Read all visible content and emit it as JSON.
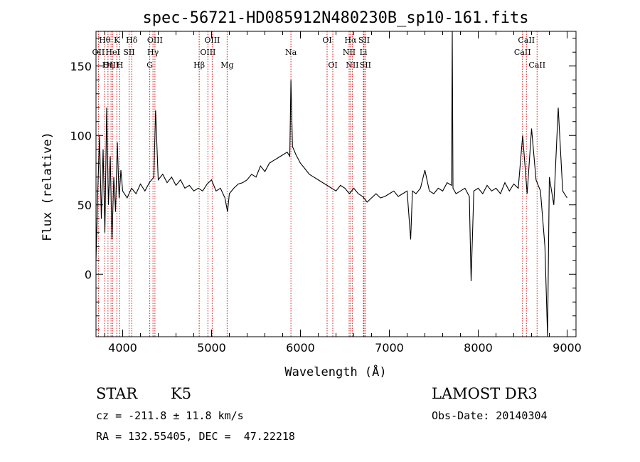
{
  "title": "spec-56721-HD085912N480230B_sp10-161.fits",
  "chart_data": {
    "type": "line",
    "title": "spec-56721-HD085912N480230B_sp10-161.fits",
    "xlabel": "Wavelength (Å)",
    "ylabel": "Flux (relative)",
    "xlim": [
      3700,
      9100
    ],
    "ylim": [
      -45,
      175
    ],
    "xticks": [
      4000,
      5000,
      6000,
      7000,
      8000,
      9000
    ],
    "yticks": [
      0,
      50,
      100,
      150
    ],
    "grid": false,
    "spectral_lines": [
      {
        "label": "Hθ",
        "wavelength": 3798,
        "row": 0
      },
      {
        "label": "OII",
        "wavelength": 3727,
        "row": 1
      },
      {
        "label": "OIII",
        "wavelength": 3869,
        "row": 2
      },
      {
        "label": "Hη",
        "wavelength": 3835,
        "row": 2
      },
      {
        "label": "HeI",
        "wavelength": 3889,
        "row": 1
      },
      {
        "label": "K",
        "wavelength": 3934,
        "row": 0
      },
      {
        "label": "H",
        "wavelength": 3968,
        "row": 2
      },
      {
        "label": "SII",
        "wavelength": 4072,
        "row": 1
      },
      {
        "label": "Hδ",
        "wavelength": 4102,
        "row": 0
      },
      {
        "label": "OIII",
        "wavelength": 4363,
        "row": 0
      },
      {
        "label": "Hγ",
        "wavelength": 4341,
        "row": 1
      },
      {
        "label": "G",
        "wavelength": 4305,
        "row": 2
      },
      {
        "label": "Hβ",
        "wavelength": 4861,
        "row": 2
      },
      {
        "label": "OIII",
        "wavelength": 4959,
        "row": 1
      },
      {
        "label": "OIII",
        "wavelength": 5007,
        "row": 0
      },
      {
        "label": "Mg",
        "wavelength": 5175,
        "row": 2
      },
      {
        "label": "Na",
        "wavelength": 5893,
        "row": 1
      },
      {
        "label": "OI",
        "wavelength": 6300,
        "row": 0
      },
      {
        "label": "OI",
        "wavelength": 6364,
        "row": 2
      },
      {
        "label": "NII",
        "wavelength": 6548,
        "row": 1
      },
      {
        "label": "Hα",
        "wavelength": 6563,
        "row": 0
      },
      {
        "label": "NII",
        "wavelength": 6583,
        "row": 2
      },
      {
        "label": "SII",
        "wavelength": 6716,
        "row": 0
      },
      {
        "label": "Li",
        "wavelength": 6708,
        "row": 1
      },
      {
        "label": "SII",
        "wavelength": 6731,
        "row": 2
      },
      {
        "label": "CaII",
        "wavelength": 8498,
        "row": 1
      },
      {
        "label": "CaII",
        "wavelength": 8542,
        "row": 0
      },
      {
        "label": "CaII",
        "wavelength": 8662,
        "row": 2
      }
    ],
    "series": [
      {
        "x": [
          3700,
          3720,
          3740,
          3760,
          3780,
          3800,
          3820,
          3840,
          3860,
          3880,
          3900,
          3920,
          3940,
          3960,
          3980,
          4000,
          4050,
          4100,
          4150,
          4200,
          4250,
          4300,
          4350,
          4370,
          4400,
          4450,
          4500,
          4550,
          4600,
          4650,
          4700,
          4750,
          4800,
          4850,
          4900,
          4950,
          5000,
          5050,
          5100,
          5150,
          5180,
          5200,
          5250,
          5300,
          5350,
          5400,
          5450,
          5500,
          5550,
          5600,
          5650,
          5700,
          5750,
          5800,
          5850,
          5880,
          5893,
          5910,
          5950,
          6000,
          6050,
          6100,
          6150,
          6200,
          6250,
          6300,
          6350,
          6400,
          6450,
          6500,
          6550,
          6600,
          6650,
          6700,
          6750,
          6800,
          6850,
          6900,
          6950,
          7000,
          7050,
          7100,
          7150,
          7200,
          7240,
          7260,
          7300,
          7350,
          7400,
          7450,
          7500,
          7550,
          7600,
          7650,
          7700,
          7708,
          7716,
          7750,
          7800,
          7850,
          7900,
          7920,
          7950,
          8000,
          8050,
          8100,
          8150,
          8200,
          8250,
          8300,
          8350,
          8400,
          8450,
          8500,
          8550,
          8600,
          8650,
          8700,
          8750,
          8780,
          8800,
          8850,
          8900,
          8950,
          9000
        ],
        "y": [
          10,
          60,
          100,
          40,
          90,
          30,
          120,
          50,
          85,
          25,
          70,
          45,
          95,
          55,
          75,
          60,
          55,
          62,
          58,
          65,
          60,
          66,
          70,
          118,
          68,
          72,
          66,
          70,
          64,
          68,
          62,
          64,
          60,
          62,
          60,
          65,
          68,
          60,
          62,
          55,
          45,
          58,
          62,
          65,
          66,
          68,
          72,
          70,
          78,
          74,
          80,
          82,
          84,
          86,
          88,
          85,
          140,
          92,
          86,
          80,
          76,
          72,
          70,
          68,
          66,
          64,
          62,
          60,
          64,
          62,
          58,
          62,
          58,
          56,
          52,
          55,
          58,
          55,
          56,
          58,
          60,
          56,
          58,
          60,
          25,
          60,
          58,
          62,
          75,
          60,
          58,
          62,
          60,
          66,
          64,
          175,
          62,
          58,
          60,
          62,
          56,
          -5,
          60,
          62,
          58,
          64,
          60,
          62,
          58,
          66,
          60,
          65,
          62,
          100,
          58,
          105,
          68,
          60,
          20,
          -45,
          70,
          50,
          120,
          60,
          55
        ]
      }
    ]
  },
  "info": {
    "object_class": "STAR",
    "subclass": "K5",
    "survey": "LAMOST DR3",
    "cz": "cz = -211.8 ± 11.8 km/s",
    "obs_date": "Obs-Date: 20140304",
    "coords": "RA = 132.55405, DEC =  47.22218"
  }
}
